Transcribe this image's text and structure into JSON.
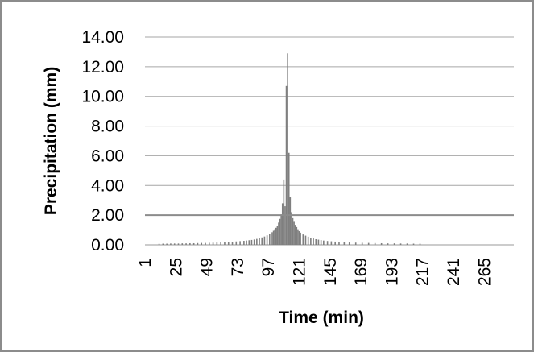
{
  "chart_data": {
    "type": "bar",
    "title": "",
    "xlabel": "Time (min)",
    "ylabel": "Precipitation (mm)",
    "ylim": [
      0,
      14
    ],
    "y_ticks": [
      "0.00",
      "2.00",
      "4.00",
      "6.00",
      "8.00",
      "10.00",
      "12.00",
      "14.00"
    ],
    "x_ticks": [
      "1",
      "25",
      "49",
      "73",
      "97",
      "121",
      "145",
      "169",
      "193",
      "217",
      "241",
      "265"
    ],
    "x_range": [
      1,
      288
    ],
    "grid": true,
    "legend": "none",
    "bar_color": "#7f7f7f",
    "series": [
      {
        "x": [
          12,
          15,
          18,
          21,
          24,
          27,
          30,
          33,
          36,
          39,
          42,
          45,
          48,
          51,
          54,
          57,
          60,
          63,
          66,
          69,
          72,
          75,
          78,
          80,
          82,
          84,
          86,
          88,
          90,
          92,
          94,
          96,
          98,
          100,
          101,
          102,
          103,
          104,
          105,
          106,
          107,
          108,
          109,
          110,
          111,
          112,
          113,
          114,
          115,
          116,
          117,
          118,
          119,
          120,
          121,
          122,
          124,
          126,
          128,
          130,
          132,
          134,
          136,
          138,
          140,
          143,
          146,
          149,
          152,
          156,
          160,
          165,
          170,
          175,
          180,
          185,
          190,
          195,
          200,
          205,
          210,
          215
        ],
        "values": [
          0.07,
          0.08,
          0.08,
          0.09,
          0.09,
          0.09,
          0.1,
          0.1,
          0.11,
          0.11,
          0.12,
          0.13,
          0.13,
          0.14,
          0.15,
          0.16,
          0.17,
          0.18,
          0.2,
          0.21,
          0.23,
          0.25,
          0.27,
          0.29,
          0.31,
          0.33,
          0.36,
          0.4,
          0.45,
          0.5,
          0.56,
          0.64,
          0.75,
          0.85,
          0.95,
          1.05,
          1.15,
          1.3,
          1.5,
          1.75,
          2.05,
          2.8,
          4.4,
          2.6,
          10.7,
          12.9,
          6.2,
          3.2,
          2.2,
          1.8,
          1.55,
          1.35,
          1.2,
          1.05,
          0.92,
          0.82,
          0.7,
          0.62,
          0.55,
          0.48,
          0.43,
          0.38,
          0.35,
          0.32,
          0.29,
          0.26,
          0.24,
          0.22,
          0.2,
          0.18,
          0.16,
          0.15,
          0.14,
          0.13,
          0.12,
          0.11,
          0.1,
          0.1,
          0.09,
          0.09,
          0.08,
          0.08
        ]
      }
    ],
    "reference_line": {
      "y": 2.0
    }
  }
}
